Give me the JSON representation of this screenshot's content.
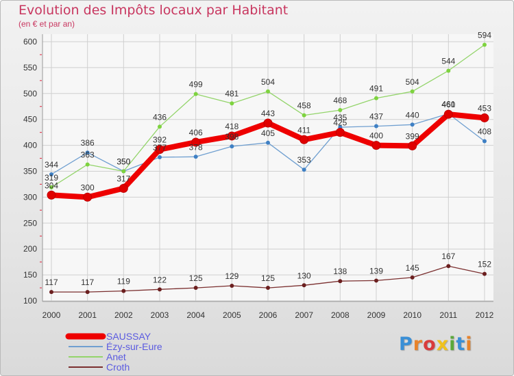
{
  "header": {
    "title": "Evolution des Impôts locaux par Habitant",
    "subtitle": "(en € et par an)"
  },
  "logo": {
    "text": "Proxiti",
    "letters": [
      {
        "char": "P",
        "color": "#3a8fd6"
      },
      {
        "char": "r",
        "color": "#e8832a"
      },
      {
        "char": "o",
        "color": "#d93b3b"
      },
      {
        "char": "x",
        "color": "#f0c21c"
      },
      {
        "char": "i",
        "color": "#5aa83b"
      },
      {
        "char": "t",
        "color": "#3a8fd6"
      },
      {
        "char": "i",
        "color": "#e8832a"
      }
    ]
  },
  "chart_data": {
    "type": "line",
    "title": "Evolution des Impôts locaux par Habitant",
    "subtitle": "(en € et par an)",
    "xlabel": "",
    "ylabel": "",
    "x": [
      "2000",
      "2001",
      "2002",
      "2003",
      "2004",
      "2005",
      "2006",
      "2007",
      "2008",
      "2009",
      "2010",
      "2011",
      "2012"
    ],
    "ylim": [
      100,
      600
    ],
    "yticks": [
      100,
      150,
      200,
      250,
      300,
      350,
      400,
      450,
      500,
      550,
      600
    ],
    "grid": true,
    "legend_position": "bottom-left",
    "series": [
      {
        "name": "Croth",
        "color": "#7a2e2e",
        "point_color": "#6b1f1f",
        "width": 1.3,
        "values": [
          117,
          117,
          119,
          122,
          125,
          129,
          125,
          130,
          138,
          139,
          145,
          167,
          152
        ]
      },
      {
        "name": "Ézy-sur-Eure",
        "color": "#6f9fd0",
        "point_color": "#3f80c4",
        "width": 1.3,
        "values": [
          344,
          386,
          350,
          377,
          378,
          398,
          405,
          353,
          435,
          437,
          440,
          461,
          408
        ]
      },
      {
        "name": "Anet",
        "color": "#93d46a",
        "point_color": "#7ed33f",
        "width": 1.3,
        "values": [
          319,
          363,
          350,
          436,
          499,
          481,
          504,
          458,
          468,
          491,
          504,
          544,
          594
        ]
      },
      {
        "name": "SAUSSAY",
        "color": "#ee0000",
        "point_color": "#e00000",
        "width": 8,
        "values": [
          304,
          300,
          317,
          392,
          406,
          418,
          443,
          411,
          425,
          400,
          399,
          460,
          453
        ]
      }
    ],
    "legend_order": [
      "SAUSSAY",
      "Ézy-sur-Eure",
      "Anet",
      "Croth"
    ]
  }
}
